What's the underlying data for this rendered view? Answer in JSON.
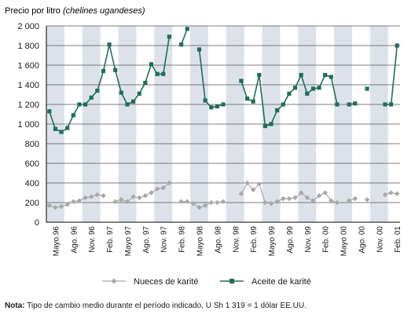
{
  "chart_data": {
    "type": "line",
    "ylabel_prefix": "Precio por litro ",
    "ylabel_italic": "(chelines ugandeses)",
    "ylim": [
      0,
      2000
    ],
    "yticks": [
      0,
      200,
      400,
      600,
      800,
      1000,
      1200,
      1400,
      1600,
      1800,
      2000
    ],
    "ytick_labels": [
      "0",
      "200",
      "400",
      "600",
      "800",
      "1 000",
      "1 200",
      "1 400",
      "1 600",
      "1 800",
      "2 000"
    ],
    "x_labels": [
      "Mayo.96",
      "Ago. 96",
      "Nov. 96",
      "Feb. 97",
      "Mayo 97",
      "Ago. 97",
      "Nov. 97",
      "Feb. 98",
      "Mayo 98",
      "Ago. 98",
      "Nov. 98",
      "Feb. 99",
      "Mayo 99",
      "Ago. 99",
      "Nov. 99",
      "Feb. 00",
      "Mayo 00",
      "Ago. 00",
      "Nov. 00",
      "Feb. 01"
    ],
    "grid": true,
    "legend_position": "bottom",
    "series": [
      {
        "name": "Nueces de karité",
        "color": "#a8a8a8",
        "marker": "diamond",
        "values": [
          170,
          150,
          160,
          180,
          210,
          220,
          250,
          260,
          280,
          270,
          null,
          210,
          230,
          210,
          260,
          250,
          270,
          300,
          340,
          350,
          400,
          null,
          210,
          210,
          190,
          150,
          170,
          200,
          200,
          210,
          null,
          null,
          290,
          400,
          330,
          390,
          200,
          190,
          210,
          240,
          240,
          250,
          300,
          250,
          220,
          270,
          300,
          220,
          200,
          null,
          220,
          240,
          null,
          230,
          null,
          null,
          280,
          300,
          290
        ]
      },
      {
        "name": "Aceite de karité",
        "color": "#1f6e5a",
        "marker": "square",
        "values": [
          1130,
          950,
          920,
          960,
          1090,
          1200,
          1200,
          1270,
          1340,
          1540,
          1810,
          1550,
          1320,
          1200,
          1230,
          1310,
          1420,
          1610,
          1510,
          1510,
          1890,
          null,
          1810,
          1970,
          null,
          1760,
          1240,
          1170,
          1180,
          1200,
          null,
          null,
          1440,
          1260,
          1230,
          1500,
          980,
          1000,
          1140,
          1200,
          1310,
          1370,
          1500,
          1310,
          1360,
          1370,
          1500,
          1480,
          1200,
          null,
          1200,
          1210,
          null,
          1360,
          null,
          null,
          1200,
          1200,
          1800
        ]
      }
    ]
  },
  "note": {
    "label": "Nota:",
    "text": " Tipo de cambio medio durante el período indicado, U Sh 1 319 = 1 dólar EE.UU."
  }
}
